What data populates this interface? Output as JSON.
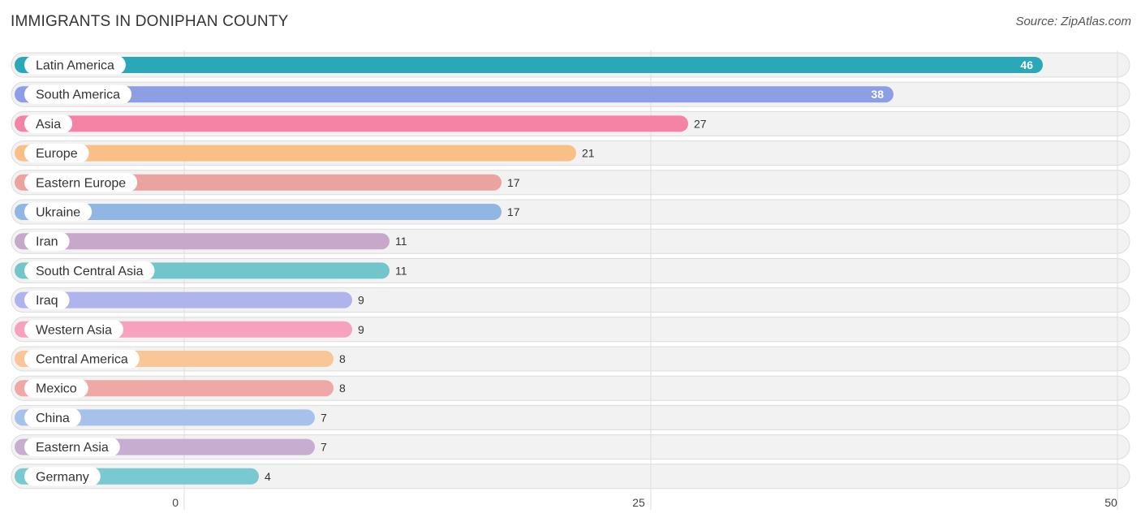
{
  "header": {
    "title": "IMMIGRANTS IN DONIPHAN COUNTY",
    "source": "Source: ZipAtlas.com"
  },
  "chart_data": {
    "type": "bar",
    "orientation": "horizontal",
    "title": "IMMIGRANTS IN DONIPHAN COUNTY",
    "xlim": [
      0,
      50
    ],
    "ticks": [
      0,
      25,
      50
    ],
    "grid": true,
    "categories": [
      "Latin America",
      "South America",
      "Asia",
      "Europe",
      "Eastern Europe",
      "Ukraine",
      "Iran",
      "South Central Asia",
      "Iraq",
      "Western Asia",
      "Central America",
      "Mexico",
      "China",
      "Eastern Asia",
      "Germany"
    ],
    "values": [
      46,
      38,
      27,
      21,
      17,
      17,
      11,
      11,
      9,
      9,
      8,
      8,
      7,
      7,
      4
    ],
    "colors": [
      "#2aa8b8",
      "#8c9ee4",
      "#f483a6",
      "#f9bf86",
      "#eba39f",
      "#92b6e4",
      "#c7a8cb",
      "#72c5ca",
      "#b0b4ec",
      "#f6a1be",
      "#f9c697",
      "#eea8a5",
      "#a6c2ea",
      "#c7adcf",
      "#79c9d1"
    ]
  }
}
